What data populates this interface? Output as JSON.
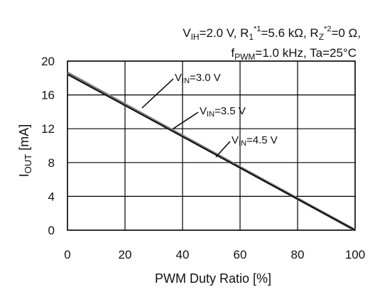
{
  "chart_data": {
    "type": "line",
    "conditions": {
      "line1": {
        "vih_main": "V",
        "vih_sub": "IH",
        "vih_val": "=2.0 V, ",
        "r1_main": "R",
        "r1_sub": "1",
        "r1_sup": "*1",
        "r1_val": "=5.6 kΩ, ",
        "rz_main": "R",
        "rz_sub": "Z",
        "rz_sup": "*2",
        "rz_val": "=0 Ω,"
      },
      "line2": {
        "f_main": "f",
        "f_sub": "PWM",
        "f_val": "=1.0 kHz, Ta=25°C"
      }
    },
    "xlabel": "PWM Duty Ratio [%]",
    "ylabel": {
      "main": "I",
      "sub": "OUT",
      "unit": " [mA]"
    },
    "xlim": [
      0,
      100
    ],
    "ylim": [
      0,
      20
    ],
    "xticks": [
      "0",
      "20",
      "40",
      "60",
      "80",
      "100"
    ],
    "yticks": [
      "0",
      "4",
      "8",
      "12",
      "16",
      "20"
    ],
    "grid": true,
    "series": [
      {
        "name": "VIN=3.0 V",
        "label_main": "V",
        "label_sub": "IN",
        "label_val": "=3.0 V",
        "x": [
          0,
          100
        ],
        "y": [
          18.6,
          0
        ]
      },
      {
        "name": "VIN=3.5 V",
        "label_main": "V",
        "label_sub": "IN",
        "label_val": "=3.5 V",
        "x": [
          0,
          100
        ],
        "y": [
          18.5,
          0
        ]
      },
      {
        "name": "VIN=4.5 V",
        "label_main": "V",
        "label_sub": "IN",
        "label_val": "=4.5 V",
        "x": [
          0,
          100
        ],
        "y": [
          18.4,
          0
        ]
      }
    ]
  }
}
